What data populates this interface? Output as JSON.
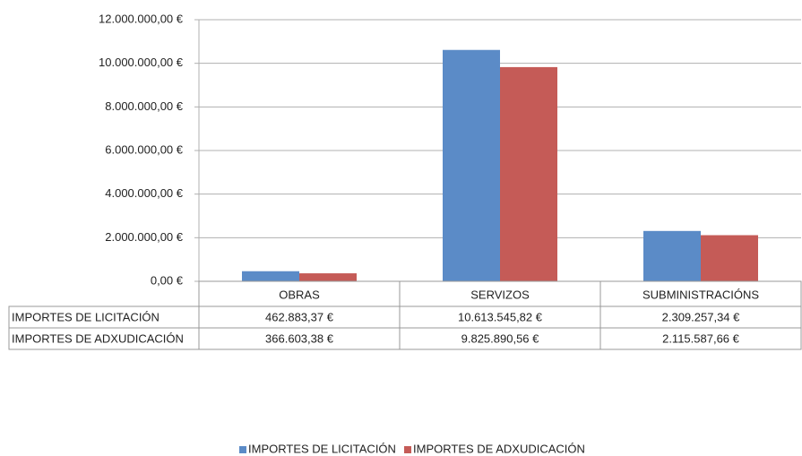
{
  "chart_data": {
    "type": "bar",
    "categories": [
      "OBRAS",
      "SERVIZOS",
      "SUBMINISTRACIÓNS"
    ],
    "series": [
      {
        "name": "IMPORTES DE LICITACIÓN",
        "color": "#5B8BC7",
        "values": [
          462883.37,
          10613545.82,
          2309257.34
        ],
        "value_labels": [
          "462.883,37 €",
          "10.613.545,82 €",
          "2.309.257,34 €"
        ]
      },
      {
        "name": "IMPORTES DE ADXUDICACIÓN",
        "color": "#C55B57",
        "values": [
          366603.38,
          9825890.56,
          2115587.66
        ],
        "value_labels": [
          "366.603,38 €",
          "9.825.890,56 €",
          "2.115.587,66 €"
        ]
      }
    ],
    "ylim": [
      0,
      12000000
    ],
    "yticks": [
      {
        "value": 0,
        "label": "0,00 €"
      },
      {
        "value": 2000000,
        "label": "2.000.000,00 €"
      },
      {
        "value": 4000000,
        "label": "4.000.000,00 €"
      },
      {
        "value": 6000000,
        "label": "6.000.000,00 €"
      },
      {
        "value": 8000000,
        "label": "8.000.000,00 €"
      },
      {
        "value": 10000000,
        "label": "10.000.000,00 €"
      },
      {
        "value": 12000000,
        "label": "12.000.000,00 €"
      }
    ],
    "grid": true,
    "legend": "bottom"
  }
}
